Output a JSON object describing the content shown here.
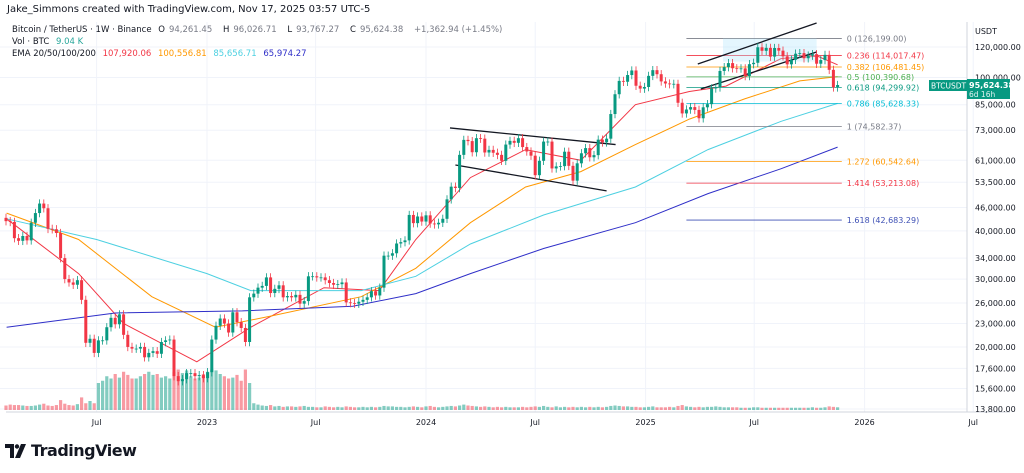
{
  "credit": "Jake_Simmons created with TradingView.com, Nov 17, 2025 03:57 UTC-5",
  "legend": {
    "symbol": "Bitcoin / TetherUS · 1W · Binance",
    "open_label": "O",
    "open": "94,261.45",
    "high_label": "H",
    "high": "96,026.71",
    "low_label": "L",
    "low": "93,767.27",
    "close_label": "C",
    "close": "95,624.38",
    "change": "+1,362.94 (+1.45%)",
    "vol_label": "Vol · BTC",
    "vol": "9.04 K",
    "ema_label": "EMA 20/50/100/200",
    "ema_values": [
      "107,920.06",
      "100,556.81",
      "85,656.71",
      "65,974.27"
    ]
  },
  "colors": {
    "up": "#089981",
    "down": "#f23645",
    "ema": [
      "#f23645",
      "#ff9800",
      "#4dd0e1",
      "#2f2fc8"
    ],
    "grid": "#f0f3fa"
  },
  "price_axis": {
    "currency": "USDT",
    "scale": "log",
    "ticks": [
      "120,000.00",
      "100,000.00",
      "85,000.00",
      "73,000.00",
      "61,000.00",
      "53,500.00",
      "46,000.00",
      "40,000.00",
      "34,000.00",
      "30,000.00",
      "26,000.00",
      "23,000.00",
      "20,000.00",
      "17,600.00",
      "15,600.00",
      "13,800.00"
    ],
    "tick_values": [
      120000,
      100000,
      85000,
      73000,
      61000,
      53500,
      46000,
      40000,
      34000,
      30000,
      26000,
      23000,
      20000,
      17600,
      15600,
      13800
    ],
    "last_price_tag": {
      "symbol": "BTCUSDT",
      "price": "95,624.38",
      "countdown": "6d 16h"
    }
  },
  "time_axis": {
    "labels": [
      "Jul",
      "2023",
      "Jul",
      "2024",
      "Jul",
      "2025",
      "Jul",
      "2026",
      "Jul"
    ],
    "dates": [
      "2022-07-01",
      "2023-01-01",
      "2023-07-01",
      "2024-01-01",
      "2024-07-01",
      "2025-01-01",
      "2025-07-01",
      "2026-01-01",
      "2026-07-01"
    ]
  },
  "chart_data": {
    "type": "candlestick",
    "interval": "1W",
    "closes": [
      42400,
      42200,
      38300,
      37700,
      38800,
      37800,
      42000,
      44500,
      47100,
      45800,
      40500,
      40400,
      39500,
      34000,
      30000,
      29400,
      29000,
      29800,
      26500,
      20500,
      21000,
      19300,
      20800,
      20800,
      22500,
      23800,
      22900,
      24300,
      21500,
      20000,
      19800,
      19800,
      20000,
      18800,
      19300,
      19500,
      19200,
      20600,
      20800,
      20900,
      16800,
      16300,
      16500,
      17100,
      17100,
      16800,
      16900,
      16600,
      17200,
      20900,
      22700,
      23700,
      23000,
      21800,
      24600,
      23200,
      22400,
      20600,
      26900,
      27500,
      28500,
      28800,
      30300,
      27600,
      28300,
      28900,
      26900,
      27100,
      26900,
      27300,
      25900,
      26300,
      30500,
      30500,
      30300,
      30300,
      29800,
      29300,
      29000,
      29100,
      29400,
      26100,
      26000,
      25900,
      26200,
      26500,
      26900,
      27900,
      27200,
      28500,
      34500,
      34500,
      35000,
      37100,
      37400,
      37800,
      44000,
      41900,
      43600,
      42300,
      43900,
      41800,
      41600,
      42000,
      43000,
      48300,
      52100,
      51700,
      63000,
      68900,
      68400,
      64000,
      69600,
      69400,
      63900,
      64900,
      63800,
      63000,
      60800,
      67000,
      68500,
      67700,
      69600,
      66000,
      64300,
      62700,
      55800,
      60800,
      68200,
      68200,
      58100,
      58800,
      58900,
      64200,
      59000,
      54000,
      59900,
      63600,
      65600,
      62100,
      62900,
      69000,
      67900,
      69400,
      80400,
      90500,
      98000,
      97500,
      101500,
      104300,
      95200,
      93600,
      94500,
      101000,
      104500,
      102000,
      97700,
      96500,
      96100,
      96300,
      86000,
      80700,
      82600,
      83800,
      82400,
      78400,
      83700,
      85300,
      93700,
      94300,
      104000,
      106400,
      109000,
      105700,
      105500,
      105600,
      100900,
      108300,
      109200,
      119800,
      117300,
      119400,
      113300,
      119300,
      117400,
      113500,
      108200,
      111200,
      115300,
      115700,
      112200,
      114000,
      115000,
      108600,
      111000,
      114500,
      104700,
      94261.45,
      95624.38
    ],
    "volume_relative": [
      10,
      12,
      11,
      11,
      10,
      9,
      9,
      10,
      12,
      14,
      10,
      9,
      11,
      22,
      14,
      11,
      10,
      13,
      28,
      15,
      20,
      15,
      60,
      65,
      75,
      70,
      80,
      72,
      85,
      78,
      70,
      70,
      75,
      80,
      85,
      78,
      80,
      72,
      75,
      70,
      85,
      90,
      82,
      88,
      75,
      70,
      72,
      80,
      85,
      90,
      88,
      80,
      75,
      70,
      72,
      78,
      65,
      90,
      60,
      15,
      12,
      10,
      9,
      11,
      8,
      9,
      7,
      8,
      8,
      7,
      8,
      9,
      7,
      7,
      6,
      6,
      8,
      7,
      6,
      7,
      6,
      8,
      7,
      6,
      6,
      7,
      6,
      7,
      6,
      7,
      9,
      8,
      8,
      7,
      7,
      6,
      7,
      8,
      7,
      6,
      8,
      9,
      7,
      6,
      7,
      8,
      9,
      8,
      10,
      12,
      10,
      9,
      8,
      7,
      8,
      7,
      6,
      7,
      6,
      7,
      6,
      6,
      6,
      7,
      6,
      7,
      8,
      7,
      9,
      7,
      6,
      8,
      6,
      7,
      6,
      7,
      6,
      7,
      6,
      7,
      6,
      7,
      6,
      7,
      9,
      10,
      9,
      8,
      8,
      7,
      7,
      6,
      6,
      7,
      8,
      6,
      6,
      6,
      7,
      6,
      9,
      11,
      8,
      7,
      6,
      7,
      6,
      7,
      7,
      8,
      7,
      6,
      6,
      6,
      6,
      5,
      5,
      5,
      6,
      6,
      5,
      5,
      5,
      5,
      5,
      5,
      5,
      5,
      5,
      5,
      5,
      5,
      6,
      5,
      5,
      6,
      8,
      7,
      6
    ],
    "ema": [
      {
        "name": "EMA 20",
        "points": [
          [
            "2022-02-01",
            43000
          ],
          [
            "2022-06-01",
            31000
          ],
          [
            "2022-08-15",
            23000
          ],
          [
            "2022-12-15",
            18300
          ],
          [
            "2023-03-15",
            22500
          ],
          [
            "2023-07-15",
            28500
          ],
          [
            "2023-10-15",
            28000
          ],
          [
            "2023-12-15",
            38000
          ],
          [
            "2024-03-15",
            55000
          ],
          [
            "2024-06-15",
            65000
          ],
          [
            "2024-09-15",
            61000
          ],
          [
            "2024-12-15",
            85000
          ],
          [
            "2025-03-15",
            92000
          ],
          [
            "2025-05-15",
            95000
          ],
          [
            "2025-08-15",
            112000
          ],
          [
            "2025-10-15",
            113500
          ],
          [
            "2025-11-17",
            107920.06
          ]
        ]
      },
      {
        "name": "EMA 50",
        "points": [
          [
            "2022-02-01",
            44500
          ],
          [
            "2022-06-01",
            38000
          ],
          [
            "2022-10-01",
            27000
          ],
          [
            "2023-01-15",
            22500
          ],
          [
            "2023-04-15",
            24000
          ],
          [
            "2023-09-15",
            27000
          ],
          [
            "2023-12-15",
            32000
          ],
          [
            "2024-03-15",
            42000
          ],
          [
            "2024-06-15",
            52000
          ],
          [
            "2024-09-15",
            57000
          ],
          [
            "2024-12-15",
            67000
          ],
          [
            "2025-03-15",
            78000
          ],
          [
            "2025-06-15",
            88000
          ],
          [
            "2025-09-15",
            98000
          ],
          [
            "2025-11-17",
            100556.81
          ]
        ]
      },
      {
        "name": "EMA 100",
        "points": [
          [
            "2022-02-01",
            43000
          ],
          [
            "2022-07-01",
            38000
          ],
          [
            "2023-01-01",
            31000
          ],
          [
            "2023-03-15",
            28000
          ],
          [
            "2023-09-15",
            28000
          ],
          [
            "2023-12-15",
            30500
          ],
          [
            "2024-03-15",
            37000
          ],
          [
            "2024-07-15",
            44000
          ],
          [
            "2024-12-15",
            52000
          ],
          [
            "2025-04-15",
            65000
          ],
          [
            "2025-08-15",
            77000
          ],
          [
            "2025-11-17",
            85656.71
          ]
        ]
      },
      {
        "name": "EMA 200",
        "points": [
          [
            "2022-02-01",
            22500
          ],
          [
            "2022-08-01",
            24500
          ],
          [
            "2023-03-01",
            24800
          ],
          [
            "2023-09-01",
            25500
          ],
          [
            "2023-12-15",
            27500
          ],
          [
            "2024-03-15",
            31000
          ],
          [
            "2024-07-15",
            36000
          ],
          [
            "2024-12-15",
            42000
          ],
          [
            "2025-04-15",
            50000
          ],
          [
            "2025-08-15",
            58000
          ],
          [
            "2025-11-17",
            65974.27
          ]
        ]
      }
    ],
    "fib_retracement": {
      "from_date": "2025-03-10",
      "to_date": "2025-11-24",
      "levels": [
        {
          "ratio": "0",
          "price": 126199.0,
          "label": "0 (126,199.00)",
          "color": "#787b86"
        },
        {
          "ratio": "0.236",
          "price": 114017.47,
          "label": "0.236 (114,017.47)",
          "color": "#f23645"
        },
        {
          "ratio": "0.382",
          "price": 106481.45,
          "label": "0.382 (106,481.45)",
          "color": "#ff9800"
        },
        {
          "ratio": "0.5",
          "price": 100390.68,
          "label": "0.5 (100,390.68)",
          "color": "#4caf50"
        },
        {
          "ratio": "0.618",
          "price": 94299.92,
          "label": "0.618 (94,299.92)",
          "color": "#089981"
        },
        {
          "ratio": "0.786",
          "price": 85628.33,
          "label": "0.786 (85,628.33)",
          "color": "#00bcd4"
        },
        {
          "ratio": "1",
          "price": 74582.37,
          "label": "1 (74,582.37)",
          "color": "#787b86"
        },
        {
          "ratio": "1.272",
          "price": 60542.64,
          "label": "1.272 (60,542.64)",
          "color": "#ff9800"
        },
        {
          "ratio": "1.414",
          "price": 53213.08,
          "label": "1.414 (53,213.08)",
          "color": "#f23645"
        },
        {
          "ratio": "1.618",
          "price": 42683.29,
          "label": "1.618 (42,683.29)",
          "color": "#3f51b5"
        }
      ]
    },
    "trendlines": [
      {
        "name": "channel-2024-upper",
        "points": [
          [
            "2024-02-10",
            74000
          ],
          [
            "2024-11-12",
            67000
          ]
        ]
      },
      {
        "name": "channel-2024-lower",
        "points": [
          [
            "2024-02-19",
            59300
          ],
          [
            "2024-10-28",
            50800
          ]
        ]
      },
      {
        "name": "channel-2025-upper",
        "points": [
          [
            "2025-03-29",
            108400
          ],
          [
            "2025-10-13",
            138500
          ]
        ]
      },
      {
        "name": "channel-2025-lower",
        "points": [
          [
            "2025-04-03",
            93400
          ],
          [
            "2025-10-13",
            116500
          ]
        ]
      }
    ]
  },
  "footer": {
    "brand": "TradingView"
  }
}
